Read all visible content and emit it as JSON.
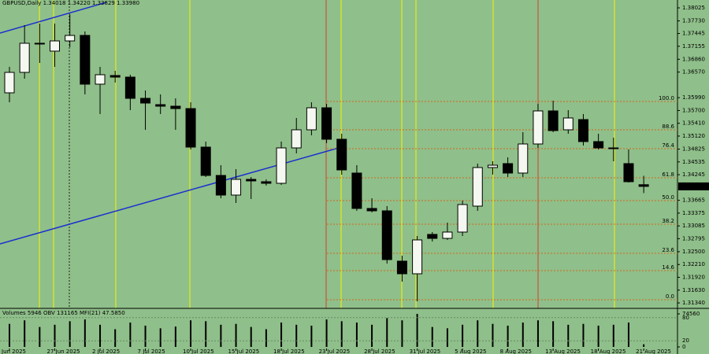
{
  "chart_data": {
    "type": "candlestick",
    "title": "GBPUSD,Daily  1.34018 1.34220 1.33829 1.33980",
    "categories": [
      "Jun 2025",
      null,
      null,
      "27 Jun 2025",
      null,
      null,
      "2 Jul 2025",
      null,
      null,
      "7 Jul 2025",
      null,
      null,
      "10 Jul 2025",
      null,
      null,
      "15 Jul 2025",
      null,
      null,
      "18 Jul 2025",
      null,
      null,
      "23 Jul 2025",
      null,
      null,
      "28 Jul 2025",
      null,
      null,
      "31 Jul 2025",
      null,
      null,
      "5 Aug 2025",
      null,
      null,
      "8 Aug 2025",
      null,
      null,
      "13 Aug 2025",
      null,
      null,
      "18 Aug 2025",
      null,
      null,
      "21 Aug 2025"
    ],
    "open": [
      1.361,
      1.36563,
      1.37223,
      1.37045,
      1.37276,
      1.37401,
      1.36296,
      1.36492,
      1.36456,
      1.35975,
      1.35832,
      1.35797,
      1.35743,
      1.3487,
      1.34228,
      1.33783,
      1.34139,
      1.34086,
      1.3405,
      1.34852,
      1.35262,
      1.35761,
      1.35048,
      1.34282,
      1.3348,
      1.33426,
      1.32286,
      1.32,
      1.32892,
      1.32802,
      1.32945,
      1.33533,
      1.34407,
      1.34496,
      1.34282,
      1.34941,
      1.3569,
      1.35262,
      1.35494,
      1.34995,
      1.34852,
      1.34496,
      1.34018
    ],
    "high": [
      1.36688,
      1.37633,
      1.37669,
      1.37669,
      1.37882,
      1.3749,
      1.36688,
      1.36599,
      1.3651,
      1.36153,
      1.36064,
      1.35975,
      1.35886,
      1.34995,
      1.3446,
      1.34371,
      1.34193,
      1.34139,
      1.34995,
      1.3553,
      1.35886,
      1.3585,
      1.35173,
      1.3446,
      1.33711,
      1.33533,
      1.3241,
      1.32856,
      1.32945,
      1.33159,
      1.33658,
      1.34496,
      1.34549,
      1.34638,
      1.35209,
      1.3585,
      1.35922,
      1.35708,
      1.35619,
      1.35173,
      1.35084,
      1.34816,
      1.3422
    ],
    "low": [
      1.35886,
      1.36421,
      1.36777,
      1.36688,
      1.37134,
      1.36064,
      1.35619,
      1.36332,
      1.35708,
      1.35262,
      1.35619,
      1.35262,
      1.34816,
      1.34193,
      1.33711,
      1.33605,
      1.33694,
      1.33997,
      1.34015,
      1.34727,
      1.35137,
      1.34959,
      1.34246,
      1.33426,
      1.33391,
      1.32232,
      1.31822,
      1.31376,
      1.32731,
      1.32767,
      1.32856,
      1.33426,
      1.34246,
      1.34193,
      1.34193,
      1.34852,
      1.35209,
      1.35173,
      1.34905,
      1.34816,
      1.34549,
      1.34068,
      1.33829
    ],
    "close": [
      1.36563,
      1.37223,
      1.37205,
      1.37276,
      1.37401,
      1.36296,
      1.3651,
      1.36456,
      1.35975,
      1.35868,
      1.35797,
      1.35743,
      1.3487,
      1.34228,
      1.33783,
      1.34139,
      1.34104,
      1.3405,
      1.34852,
      1.35262,
      1.35761,
      1.35048,
      1.34353,
      1.3348,
      1.33426,
      1.32321,
      1.32,
      1.32767,
      1.32802,
      1.32945,
      1.33569,
      1.34407,
      1.3446,
      1.34282,
      1.34941,
      1.3569,
      1.35244,
      1.3553,
      1.34995,
      1.34852,
      1.34834,
      1.34086,
      1.3398
    ],
    "ylim": [
      1.31216,
      1.38203
    ],
    "yticks": [
      1.38025,
      {
        "value": 1.3773,
        "label": "1.37730"
      },
      1.37445,
      1.37155,
      {
        "value": 1.3686,
        "label": "1.36860"
      },
      {
        "value": 1.3657,
        "label": "1.36570"
      },
      {
        "value": 1.3599,
        "label": "1.35990"
      },
      {
        "value": 1.357,
        "label": "1.35700"
      },
      {
        "value": 1.3541,
        "label": "1.35410"
      },
      {
        "value": 1.3512,
        "label": "1.35120"
      },
      1.34825,
      1.34535,
      1.34245,
      1.33665,
      1.33375,
      1.33085,
      1.32795,
      {
        "value": 1.325,
        "label": "1.32500"
      },
      {
        "value": 1.3221,
        "label": "1.32210"
      },
      {
        "value": 1.3192,
        "label": "1.31920"
      },
      {
        "value": 1.3163,
        "label": "1.31630"
      },
      {
        "value": 1.3134,
        "label": "1.31340"
      }
    ],
    "fib_levels": [
      {
        "value": 1.35904,
        "label": "100.0"
      },
      {
        "value": 1.35262,
        "label": "88.6"
      },
      {
        "value": 1.34834,
        "label": "76.4"
      },
      {
        "value": 1.34175,
        "label": "61.8"
      },
      {
        "value": 1.33658,
        "label": "50.0"
      },
      {
        "value": 1.33123,
        "label": "38.2"
      },
      {
        "value": 1.32464,
        "label": "23.6"
      },
      {
        "value": 1.32071,
        "label": "14.6"
      },
      {
        "value": 1.31412,
        "label": "0.0"
      }
    ],
    "fib_color": "#d2691e",
    "up_color": "#f4f8f0",
    "down_color": "#000000",
    "volume_title": "Volumes 5946   OBV 131165   MFI(21) 47.5850",
    "volumes": [
      52000,
      60000,
      45000,
      50000,
      58000,
      62000,
      50000,
      40000,
      55000,
      48000,
      42000,
      46000,
      60000,
      58000,
      50000,
      52000,
      45000,
      40000,
      55000,
      50000,
      48000,
      62000,
      58000,
      55000,
      50000,
      65000,
      60000,
      74560,
      45000,
      42000,
      50000,
      60000,
      52000,
      48000,
      55000,
      60000,
      58000,
      50000,
      52000,
      48000,
      50000,
      55000,
      5946
    ],
    "volume_lim": [
      0,
      74560
    ],
    "volume_ticks": [
      74560,
      0
    ],
    "mfi_lim": [
      0,
      100
    ],
    "mfi_ticks": [
      80,
      20
    ]
  }
}
